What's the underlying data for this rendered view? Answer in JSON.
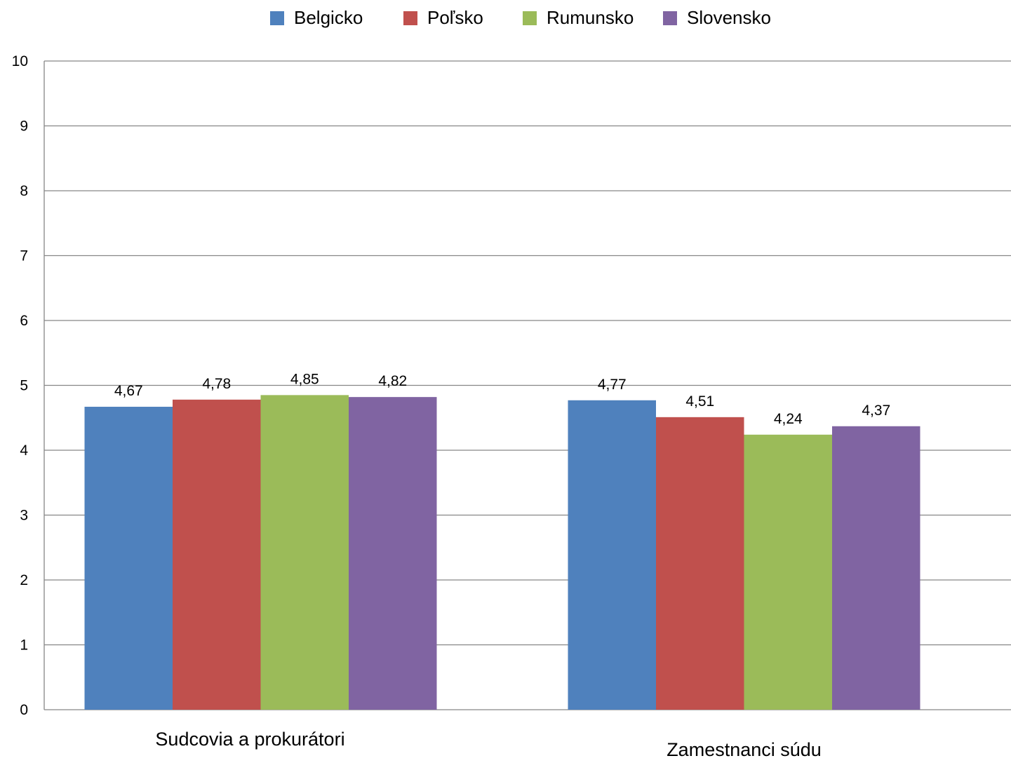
{
  "chart_data": {
    "type": "bar",
    "title": "",
    "xlabel": "",
    "ylabel": "",
    "ylim": [
      0,
      10
    ],
    "yticks": [
      "0",
      "1",
      "2",
      "3",
      "4",
      "5",
      "6",
      "7",
      "8",
      "9",
      "10"
    ],
    "grid": true,
    "legend_position": "top",
    "categories": [
      "Sudcovia a prokurátori",
      "Zamestnanci  súdu"
    ],
    "series": [
      {
        "name": "Belgicko",
        "color": "#4f81bd",
        "values": [
          4.67,
          4.77
        ],
        "labels": [
          "4,67",
          "4,77"
        ]
      },
      {
        "name": "Poľsko",
        "color": "#c0504d",
        "values": [
          4.78,
          4.51
        ],
        "labels": [
          "4,78",
          "4,51"
        ]
      },
      {
        "name": "Rumunsko",
        "color": "#9bbb59",
        "values": [
          4.85,
          4.24
        ],
        "labels": [
          "4,85",
          "4,24"
        ]
      },
      {
        "name": "Slovensko",
        "color": "#8064a2",
        "values": [
          4.82,
          4.37
        ],
        "labels": [
          "4,82",
          "4,37"
        ]
      }
    ]
  }
}
